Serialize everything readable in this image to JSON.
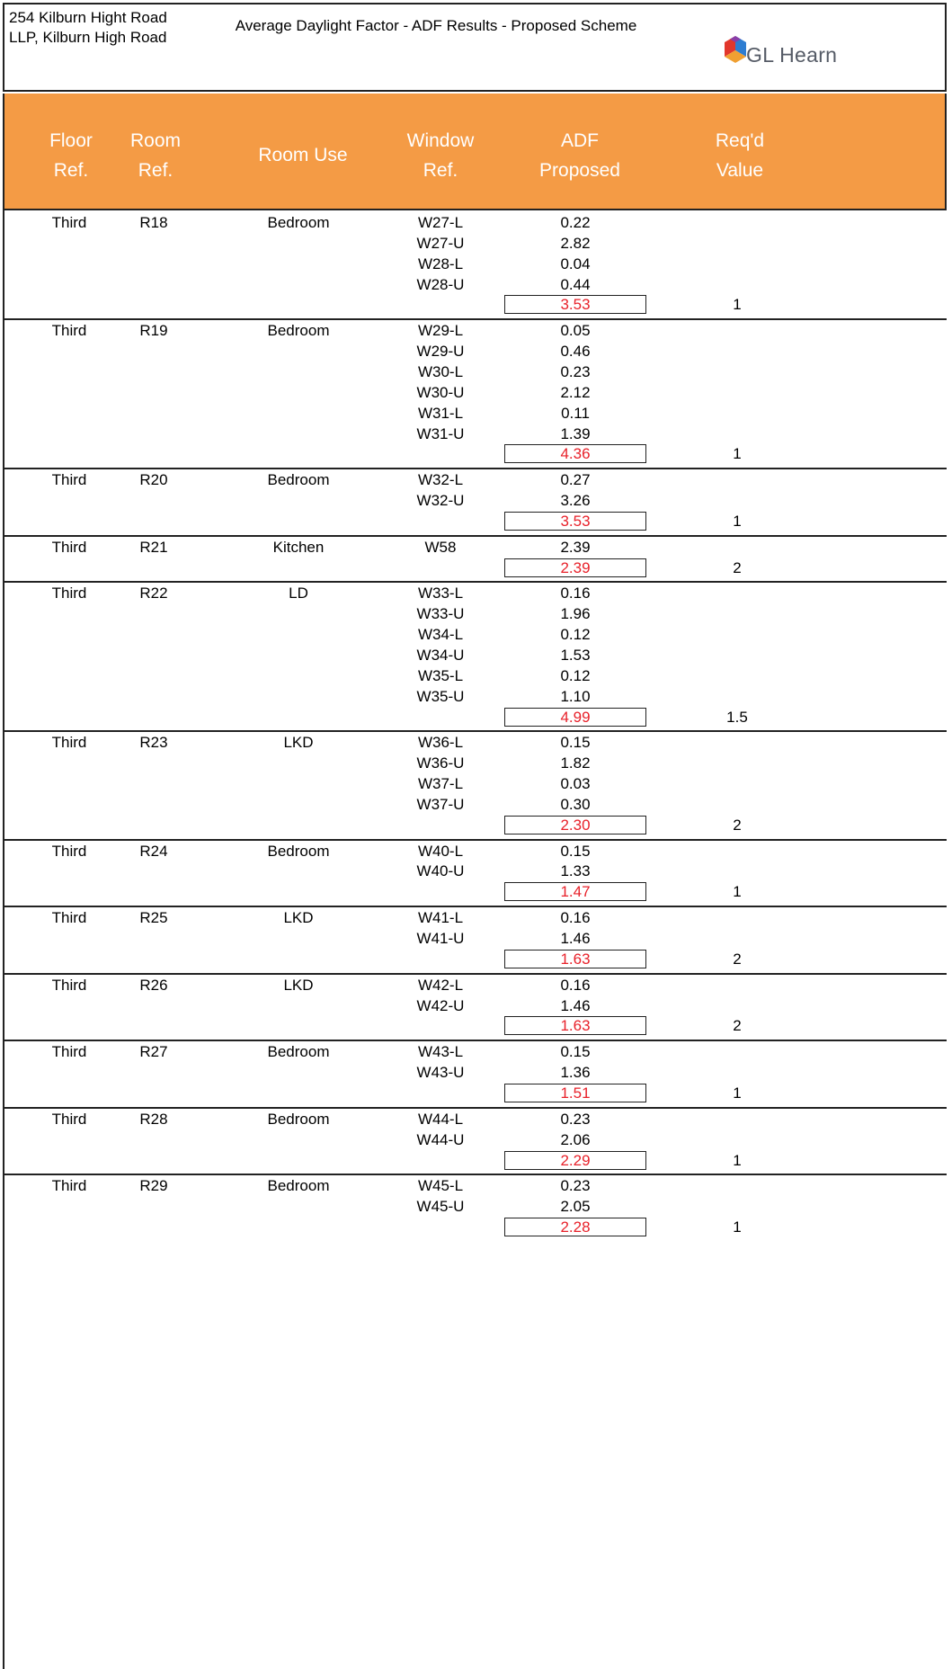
{
  "header": {
    "address": "254 Kilburn Hight Road LLP, Kilburn High Road",
    "title": "Average Daylight Factor - ADF Results - Proposed Scheme",
    "logo_text": "GL Hearn",
    "colors": {
      "band": "#f49b45",
      "total_text": "#e8212a"
    }
  },
  "columns": {
    "floor": "Floor\nRef.",
    "room": "Room\nRef.",
    "use": "Room Use",
    "window": "Window\nRef.",
    "adf": "ADF\nProposed",
    "req": "Req'd\nValue"
  },
  "rows": [
    {
      "floor": "Third",
      "room": "R18",
      "use": "Bedroom",
      "windows": [
        [
          "W27-L",
          "0.22"
        ],
        [
          "W27-U",
          "2.82"
        ],
        [
          "W28-L",
          "0.04"
        ],
        [
          "W28-U",
          "0.44"
        ]
      ],
      "total": "3.53",
      "req": "1"
    },
    {
      "floor": "Third",
      "room": "R19",
      "use": "Bedroom",
      "windows": [
        [
          "W29-L",
          "0.05"
        ],
        [
          "W29-U",
          "0.46"
        ],
        [
          "W30-L",
          "0.23"
        ],
        [
          "W30-U",
          "2.12"
        ],
        [
          "W31-L",
          "0.11"
        ],
        [
          "W31-U",
          "1.39"
        ]
      ],
      "total": "4.36",
      "req": "1"
    },
    {
      "floor": "Third",
      "room": "R20",
      "use": "Bedroom",
      "windows": [
        [
          "W32-L",
          "0.27"
        ],
        [
          "W32-U",
          "3.26"
        ]
      ],
      "total": "3.53",
      "req": "1"
    },
    {
      "floor": "Third",
      "room": "R21",
      "use": "Kitchen",
      "windows": [
        [
          "W58",
          "2.39"
        ]
      ],
      "total": "2.39",
      "req": "2"
    },
    {
      "floor": "Third",
      "room": "R22",
      "use": "LD",
      "windows": [
        [
          "W33-L",
          "0.16"
        ],
        [
          "W33-U",
          "1.96"
        ],
        [
          "W34-L",
          "0.12"
        ],
        [
          "W34-U",
          "1.53"
        ],
        [
          "W35-L",
          "0.12"
        ],
        [
          "W35-U",
          "1.10"
        ]
      ],
      "total": "4.99",
      "req": "1.5"
    },
    {
      "floor": "Third",
      "room": "R23",
      "use": "LKD",
      "windows": [
        [
          "W36-L",
          "0.15"
        ],
        [
          "W36-U",
          "1.82"
        ],
        [
          "W37-L",
          "0.03"
        ],
        [
          "W37-U",
          "0.30"
        ]
      ],
      "total": "2.30",
      "req": "2"
    },
    {
      "floor": "Third",
      "room": "R24",
      "use": "Bedroom",
      "windows": [
        [
          "W40-L",
          "0.15"
        ],
        [
          "W40-U",
          "1.33"
        ]
      ],
      "total": "1.47",
      "req": "1"
    },
    {
      "floor": "Third",
      "room": "R25",
      "use": "LKD",
      "windows": [
        [
          "W41-L",
          "0.16"
        ],
        [
          "W41-U",
          "1.46"
        ]
      ],
      "total": "1.63",
      "req": "2"
    },
    {
      "floor": "Third",
      "room": "R26",
      "use": "LKD",
      "windows": [
        [
          "W42-L",
          "0.16"
        ],
        [
          "W42-U",
          "1.46"
        ]
      ],
      "total": "1.63",
      "req": "2"
    },
    {
      "floor": "Third",
      "room": "R27",
      "use": "Bedroom",
      "windows": [
        [
          "W43-L",
          "0.15"
        ],
        [
          "W43-U",
          "1.36"
        ]
      ],
      "total": "1.51",
      "req": "1"
    },
    {
      "floor": "Third",
      "room": "R28",
      "use": "Bedroom",
      "windows": [
        [
          "W44-L",
          "0.23"
        ],
        [
          "W44-U",
          "2.06"
        ]
      ],
      "total": "2.29",
      "req": "1"
    },
    {
      "floor": "Third",
      "room": "R29",
      "use": "Bedroom",
      "windows": [
        [
          "W45-L",
          "0.23"
        ],
        [
          "W45-U",
          "2.05"
        ]
      ],
      "total": "2.28",
      "req": "1"
    }
  ]
}
